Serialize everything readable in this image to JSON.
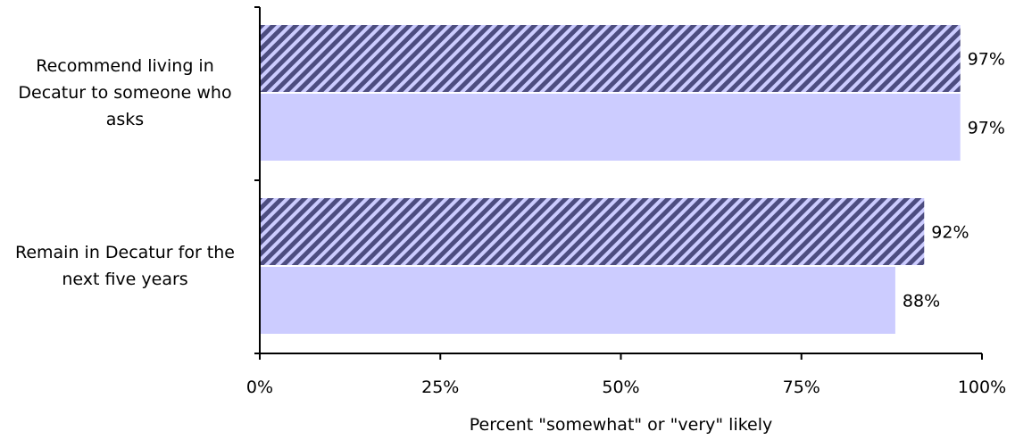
{
  "chart_data": {
    "type": "bar",
    "orientation": "horizontal",
    "categories": [
      "Recommend living in Decatur to someone who asks",
      "Remain in Decatur for the next five years"
    ],
    "category_label_lines": [
      [
        "Recommend living in",
        "Decatur to someone who",
        "asks"
      ],
      [
        "Remain in Decatur for the",
        "next five years"
      ]
    ],
    "series": [
      {
        "values": [
          97,
          92
        ],
        "value_labels": [
          "97%",
          "92%"
        ],
        "color": "#4d4d80",
        "pattern": "diagonal-stripes",
        "pattern_bg": "#ccccff"
      },
      {
        "values": [
          97,
          88
        ],
        "value_labels": [
          "97%",
          "88%"
        ],
        "color": "#ccccff",
        "pattern": "solid"
      }
    ],
    "xlim": [
      0,
      100
    ],
    "xticks": [
      0,
      25,
      50,
      75,
      100
    ],
    "xtick_labels": [
      "0%",
      "25%",
      "50%",
      "75%",
      "100%"
    ],
    "xlabel": "Percent \"somewhat\" or \"very\" likely",
    "ylabel": "",
    "title": "",
    "grid": false,
    "legend": "none"
  }
}
